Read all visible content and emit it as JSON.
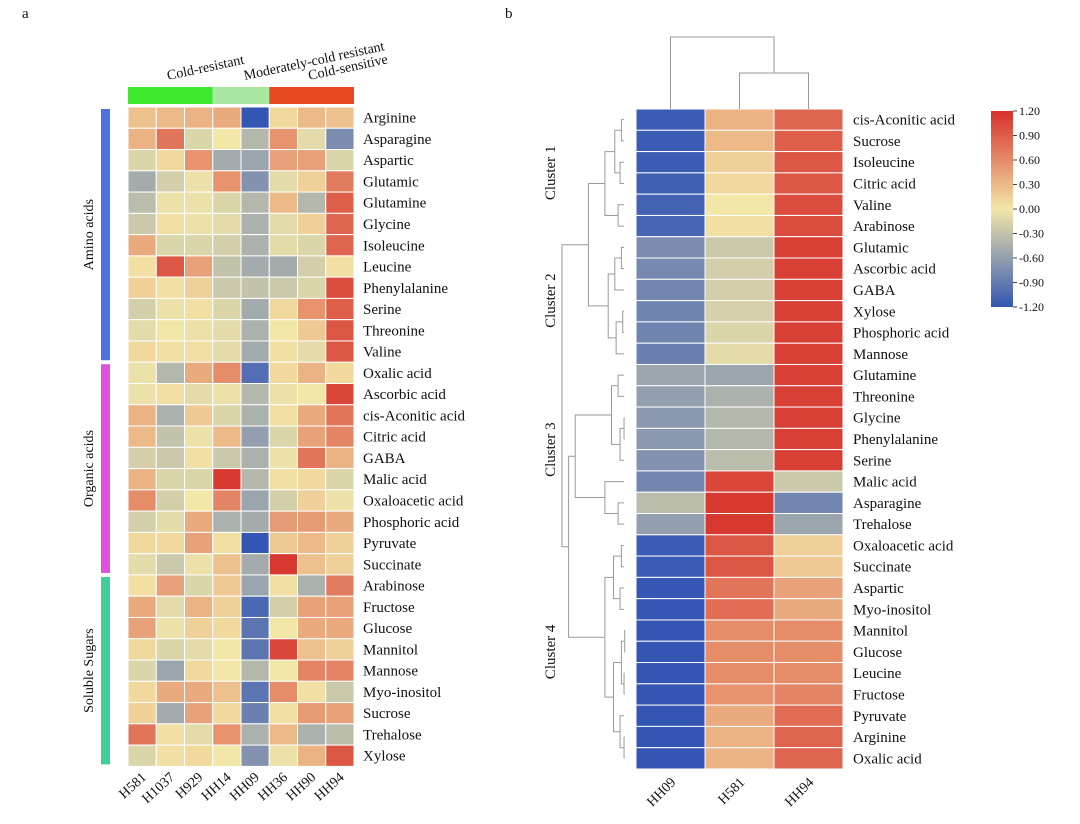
{
  "panel_labels": {
    "a": "a",
    "b": "b"
  },
  "chart_data": [
    {
      "type": "heatmap",
      "panel": "a",
      "columns": [
        "H581",
        "H1037",
        "H929",
        "HH14",
        "HH09",
        "HH36",
        "HH90",
        "HH94"
      ],
      "rows": [
        "Arginine",
        "Asparagine",
        "Aspartic",
        "Glutamic",
        "Glutamine",
        "Glycine",
        "Isoleucine",
        "Leucine",
        "Phenylalanine",
        "Serine",
        "Threonine",
        "Valine",
        "Oxalic acid",
        "Ascorbic acid",
        "cis-Aconitic acid",
        "Citric acid",
        "GABA",
        "Malic acid",
        "Oxaloacetic acid",
        "Phosphoric acid",
        "Pyruvate",
        "Succinate",
        "Arabinose",
        "Fructose",
        "Glucose",
        "Mannitol",
        "Mannose",
        "Myo-inositol",
        "Sucrose",
        "Trehalose",
        "Xylose"
      ],
      "column_groups": [
        {
          "label": "Cold-resistant",
          "columns": 3,
          "color": "#3ee82c"
        },
        {
          "label": "Moderately-cold resistant",
          "columns": 2,
          "color": "#a9e8a0"
        },
        {
          "label": "Cold-sensitive",
          "columns": 3,
          "color": "#e8481e"
        }
      ],
      "row_groups": [
        {
          "label": "Amino acids",
          "rows": 12,
          "color": "#4b74e0"
        },
        {
          "label": "Organic acids",
          "rows": 10,
          "color": "#e050e0"
        },
        {
          "label": "Soluble Sugars",
          "rows": 9,
          "color": "#3ed095"
        }
      ],
      "values": [
        [
          0.25,
          0.3,
          0.35,
          0.4,
          -1.2,
          0.1,
          0.3,
          0.25
        ],
        [
          0.35,
          0.75,
          -0.15,
          0.0,
          -0.4,
          0.55,
          -0.1,
          -0.75
        ],
        [
          -0.15,
          0.1,
          0.55,
          -0.5,
          -0.55,
          0.45,
          0.45,
          -0.15
        ],
        [
          -0.5,
          -0.2,
          -0.05,
          0.55,
          -0.7,
          -0.1,
          0.15,
          0.7
        ],
        [
          -0.35,
          -0.05,
          -0.05,
          -0.15,
          -0.4,
          0.3,
          -0.4,
          0.9
        ],
        [
          -0.25,
          0.05,
          -0.05,
          -0.1,
          -0.45,
          -0.1,
          0.15,
          0.85
        ],
        [
          0.4,
          -0.15,
          -0.15,
          -0.2,
          -0.45,
          -0.1,
          -0.15,
          0.85
        ],
        [
          0.05,
          0.95,
          0.45,
          -0.3,
          -0.5,
          -0.5,
          -0.2,
          0.05
        ],
        [
          0.15,
          0.05,
          0.15,
          -0.25,
          -0.3,
          -0.25,
          -0.15,
          1.0
        ],
        [
          -0.2,
          -0.05,
          0.05,
          -0.15,
          -0.5,
          0.1,
          0.55,
          0.9
        ],
        [
          -0.1,
          0.0,
          -0.05,
          -0.1,
          -0.45,
          0.0,
          0.2,
          0.95
        ],
        [
          0.1,
          0.05,
          0.05,
          -0.1,
          -0.5,
          0.05,
          -0.1,
          0.95
        ],
        [
          -0.05,
          -0.4,
          0.4,
          0.6,
          -1.0,
          0.1,
          0.35,
          0.1
        ],
        [
          -0.05,
          0.05,
          -0.1,
          -0.05,
          -0.4,
          -0.05,
          0.0,
          1.05
        ],
        [
          0.35,
          -0.45,
          0.2,
          -0.15,
          -0.45,
          0.05,
          0.4,
          0.75
        ],
        [
          0.3,
          -0.3,
          -0.05,
          0.3,
          -0.6,
          -0.15,
          0.45,
          0.65
        ],
        [
          -0.2,
          -0.25,
          0.05,
          -0.25,
          -0.45,
          -0.05,
          0.75,
          0.35
        ],
        [
          0.35,
          -0.15,
          -0.15,
          1.15,
          -0.4,
          0.05,
          0.1,
          -0.15
        ],
        [
          0.6,
          -0.2,
          0.0,
          0.65,
          -0.55,
          -0.2,
          0.15,
          -0.05
        ],
        [
          -0.2,
          -0.1,
          0.4,
          -0.45,
          -0.5,
          0.5,
          0.5,
          0.4
        ],
        [
          0.1,
          0.1,
          0.45,
          0.05,
          -1.2,
          0.2,
          0.3,
          0.15
        ],
        [
          -0.1,
          -0.25,
          -0.05,
          0.25,
          -0.5,
          1.15,
          0.25,
          0.15
        ],
        [
          0.05,
          0.45,
          -0.15,
          0.2,
          -0.55,
          0.05,
          -0.45,
          0.7
        ],
        [
          0.4,
          -0.1,
          0.35,
          0.15,
          -1.05,
          -0.2,
          0.45,
          0.45
        ],
        [
          0.45,
          -0.05,
          0.15,
          0.1,
          -0.95,
          0.0,
          0.4,
          0.4
        ],
        [
          0.1,
          -0.15,
          -0.1,
          0.0,
          -0.95,
          1.05,
          0.25,
          0.15
        ],
        [
          -0.15,
          -0.55,
          0.1,
          0.0,
          -0.4,
          0.0,
          0.65,
          0.65
        ],
        [
          0.1,
          0.4,
          0.4,
          0.25,
          -0.95,
          0.6,
          0.05,
          -0.25
        ],
        [
          0.15,
          -0.5,
          0.45,
          0.1,
          -0.85,
          0.05,
          0.5,
          0.45
        ],
        [
          0.75,
          0.05,
          -0.1,
          0.55,
          -0.45,
          0.3,
          -0.45,
          -0.35
        ],
        [
          -0.15,
          0.05,
          0.1,
          0.0,
          -0.7,
          -0.05,
          0.35,
          0.95
        ]
      ],
      "colorscale": {
        "low": "#3356b4",
        "mid": "#f3e7a8",
        "high": "#d6302a",
        "range": [
          -1.2,
          1.2
        ]
      }
    },
    {
      "type": "heatmap",
      "panel": "b",
      "columns": [
        "HH09",
        "H581",
        "HH94"
      ],
      "rows": [
        "cis-Aconitic acid",
        "Sucrose",
        "Isoleucine",
        "Citric acid",
        "Valine",
        "Arabinose",
        "Glutamic",
        "Ascorbic acid",
        "GABA",
        "Xylose",
        "Phosphoric acid",
        "Mannose",
        "Glutamine",
        "Threonine",
        "Glycine",
        "Phenylalanine",
        "Serine",
        "Malic acid",
        "Asparagine",
        "Trehalose",
        "Oxaloacetic acid",
        "Succinate",
        "Aspartic",
        "Myo-inositol",
        "Mannitol",
        "Glucose",
        "Leucine",
        "Fructose",
        "Pyruvate",
        "Arginine",
        "Oxalic acid"
      ],
      "row_clusters": [
        {
          "label": "Cluster 1",
          "rows": 6
        },
        {
          "label": "Cluster 2",
          "rows": 6
        },
        {
          "label": "Cluster 3",
          "rows": 8
        },
        {
          "label": "Cluster 4",
          "rows": 11
        }
      ],
      "values": [
        [
          -1.15,
          0.35,
          0.85
        ],
        [
          -1.15,
          0.3,
          0.9
        ],
        [
          -1.15,
          0.15,
          0.95
        ],
        [
          -1.12,
          0.1,
          0.95
        ],
        [
          -1.1,
          0.0,
          1.0
        ],
        [
          -1.08,
          0.05,
          1.0
        ],
        [
          -0.75,
          -0.25,
          1.1
        ],
        [
          -0.78,
          -0.2,
          1.1
        ],
        [
          -0.8,
          -0.2,
          1.1
        ],
        [
          -0.82,
          -0.18,
          1.1
        ],
        [
          -0.82,
          -0.15,
          1.1
        ],
        [
          -0.85,
          -0.1,
          1.1
        ],
        [
          -0.55,
          -0.55,
          1.1
        ],
        [
          -0.6,
          -0.45,
          1.1
        ],
        [
          -0.65,
          -0.4,
          1.1
        ],
        [
          -0.65,
          -0.4,
          1.1
        ],
        [
          -0.7,
          -0.35,
          1.1
        ],
        [
          -0.8,
          1.05,
          -0.25
        ],
        [
          -0.35,
          1.15,
          -0.8
        ],
        [
          -0.6,
          1.15,
          -0.55
        ],
        [
          -1.15,
          0.95,
          0.15
        ],
        [
          -1.15,
          0.95,
          0.2
        ],
        [
          -1.18,
          0.75,
          0.45
        ],
        [
          -1.18,
          0.8,
          0.4
        ],
        [
          -1.2,
          0.6,
          0.6
        ],
        [
          -1.2,
          0.6,
          0.6
        ],
        [
          -1.2,
          0.6,
          0.6
        ],
        [
          -1.2,
          0.55,
          0.65
        ],
        [
          -1.2,
          0.4,
          0.8
        ],
        [
          -1.2,
          0.35,
          0.85
        ],
        [
          -1.2,
          0.35,
          0.85
        ]
      ],
      "legend_ticks": [
        "1.20",
        "0.90",
        "0.60",
        "0.30",
        "0.00",
        "-0.30",
        "-0.60",
        "-0.90",
        "-1.20"
      ],
      "colorscale": {
        "low": "#3356b4",
        "mid": "#f3e7a8",
        "high": "#d6302a",
        "range": [
          -1.2,
          1.2
        ]
      }
    }
  ]
}
